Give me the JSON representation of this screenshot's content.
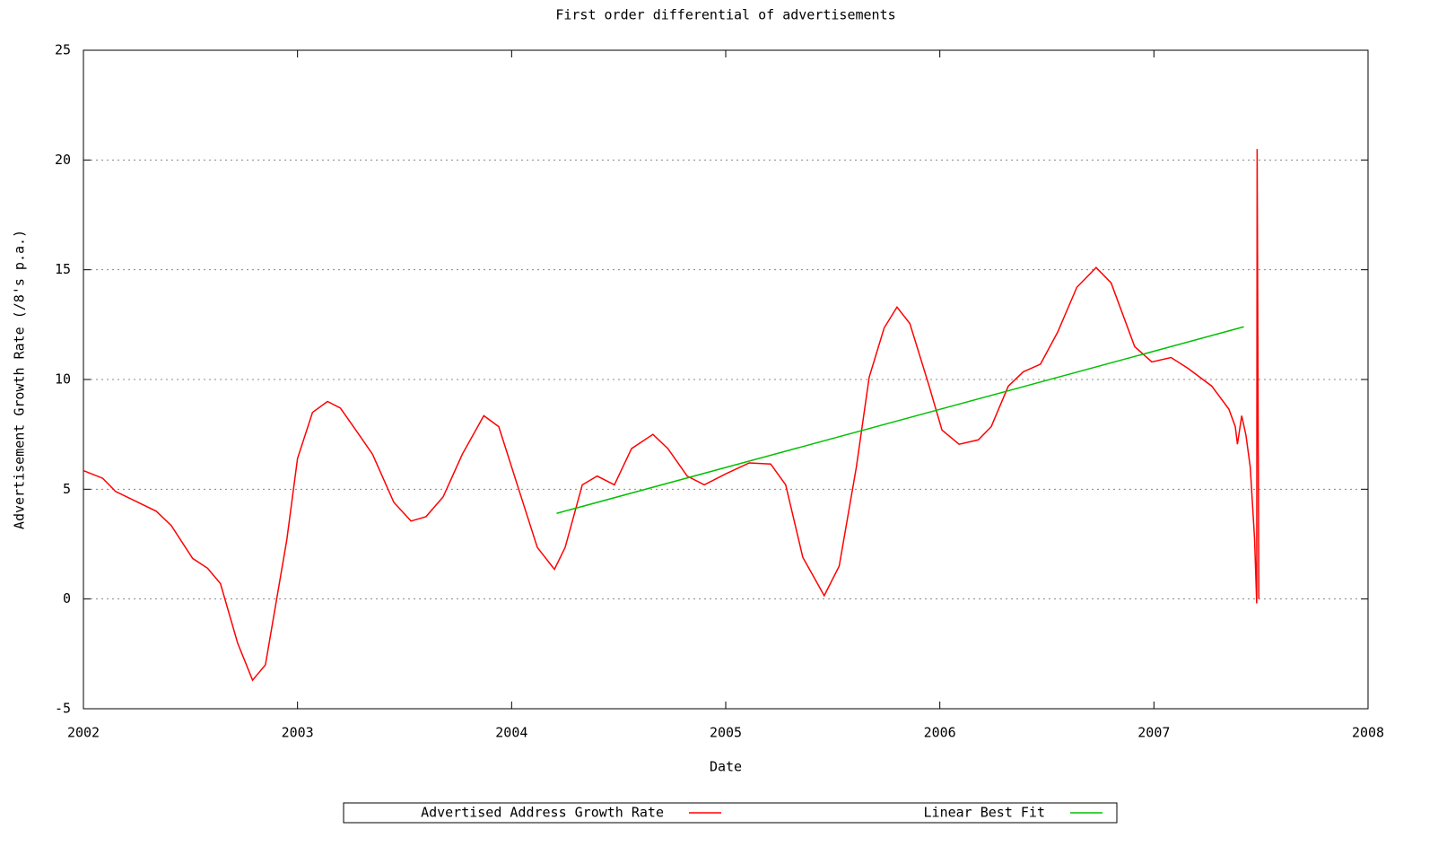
{
  "chart_data": {
    "type": "line",
    "title": "First order differential of advertisements",
    "x_label": "Date",
    "y_label": "Advertisement Growth Rate (/8's p.a.)",
    "xlim": [
      2002,
      2008
    ],
    "xticks": [
      2002,
      2003,
      2004,
      2005,
      2006,
      2007,
      2008
    ],
    "ylim": [
      -5,
      25
    ],
    "yticks": [
      -5,
      0,
      5,
      10,
      15,
      20,
      25
    ],
    "ygrid": true,
    "legend": "bottom",
    "series": [
      {
        "name": "Advertised Address Growth Rate",
        "color": "#ff0000",
        "x": [
          2002.0,
          2002.09,
          2002.15,
          2002.34,
          2002.41,
          2002.51,
          2002.58,
          2002.64,
          2002.72,
          2002.79,
          2002.85,
          2002.95,
          2003.0,
          2003.07,
          2003.14,
          2003.2,
          2003.29,
          2003.35,
          2003.45,
          2003.53,
          2003.6,
          2003.68,
          2003.77,
          2003.87,
          2003.94,
          2004.02,
          2004.12,
          2004.2,
          2004.25,
          2004.33,
          2004.4,
          2004.48,
          2004.56,
          2004.66,
          2004.73,
          2004.82,
          2004.9,
          2005.0,
          2005.11,
          2005.21,
          2005.28,
          2005.36,
          2005.46,
          2005.53,
          2005.61,
          2005.67,
          2005.74,
          2005.8,
          2005.86,
          2005.95,
          2006.01,
          2006.09,
          2006.18,
          2006.24,
          2006.32,
          2006.39,
          2006.47,
          2006.55,
          2006.64,
          2006.73,
          2006.8,
          2006.91,
          2006.99,
          2007.08,
          2007.16,
          2007.27,
          2007.35,
          2007.38,
          2007.39,
          2007.41,
          2007.43,
          2007.45,
          2007.47,
          2007.48,
          2007.482,
          2007.49
        ],
        "values": [
          5.85,
          5.5,
          4.9,
          4.0,
          3.35,
          1.85,
          1.4,
          0.7,
          -2.0,
          -3.7,
          -3.0,
          2.7,
          6.4,
          8.5,
          9.0,
          8.7,
          7.45,
          6.6,
          4.4,
          3.55,
          3.75,
          4.65,
          6.6,
          8.35,
          7.85,
          5.4,
          2.35,
          1.35,
          2.35,
          5.2,
          5.6,
          5.2,
          6.85,
          7.5,
          6.85,
          5.6,
          5.2,
          5.7,
          6.2,
          6.15,
          5.2,
          1.9,
          0.15,
          1.5,
          6.0,
          10.1,
          12.35,
          13.3,
          12.55,
          9.7,
          7.7,
          7.05,
          7.25,
          7.85,
          9.7,
          10.35,
          10.7,
          12.15,
          14.2,
          15.1,
          14.4,
          11.5,
          10.8,
          11.0,
          10.5,
          9.7,
          8.65,
          7.85,
          7.05,
          8.35,
          7.45,
          6.0,
          2.75,
          -0.2,
          20.5,
          0
        ]
      },
      {
        "name": "Linear Best Fit",
        "color": "#00c000",
        "x": [
          2004.21,
          2007.42
        ],
        "values": [
          3.9,
          12.4
        ]
      }
    ]
  }
}
